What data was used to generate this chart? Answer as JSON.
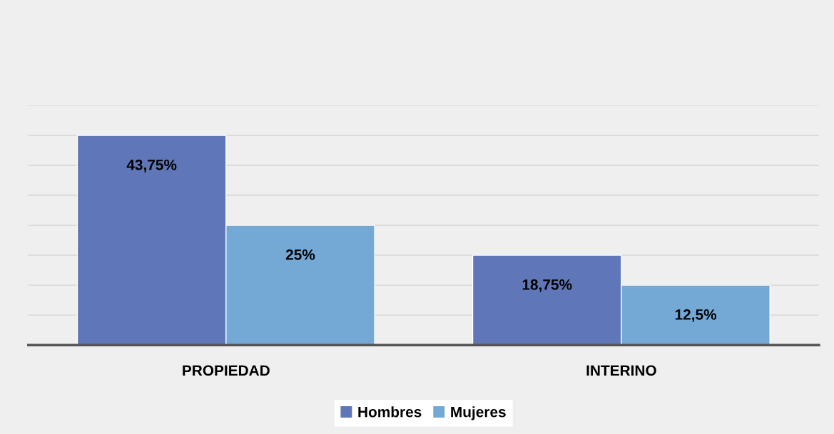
{
  "chart_data": {
    "type": "bar",
    "categories": [
      "PROPIEDAD",
      "INTERINO"
    ],
    "series": [
      {
        "name": "Hombres",
        "color": "#5f77b9",
        "values": [
          43.75,
          18.75
        ],
        "value_labels": [
          "43,75%",
          "18,75%"
        ]
      },
      {
        "name": "Mujeres",
        "color": "#74a9d6",
        "values": [
          25,
          12.5
        ],
        "value_labels": [
          "25%",
          "12,5%"
        ]
      }
    ],
    "ylim": [
      0,
      50
    ],
    "yticks": [
      {
        "value": 0,
        "label": null
      },
      {
        "value": 6.25,
        "label": null
      },
      {
        "value": 12.5,
        "label": null
      },
      {
        "value": 18.75,
        "label": null
      },
      {
        "value": 25,
        "label": null
      },
      {
        "value": 31.25,
        "label": null
      },
      {
        "value": 37.5,
        "label": null
      },
      {
        "value": 43.75,
        "label": null
      },
      {
        "value": 50,
        "label": null
      }
    ],
    "grid": "y",
    "legend": "bottom",
    "tick_labels": "x"
  }
}
